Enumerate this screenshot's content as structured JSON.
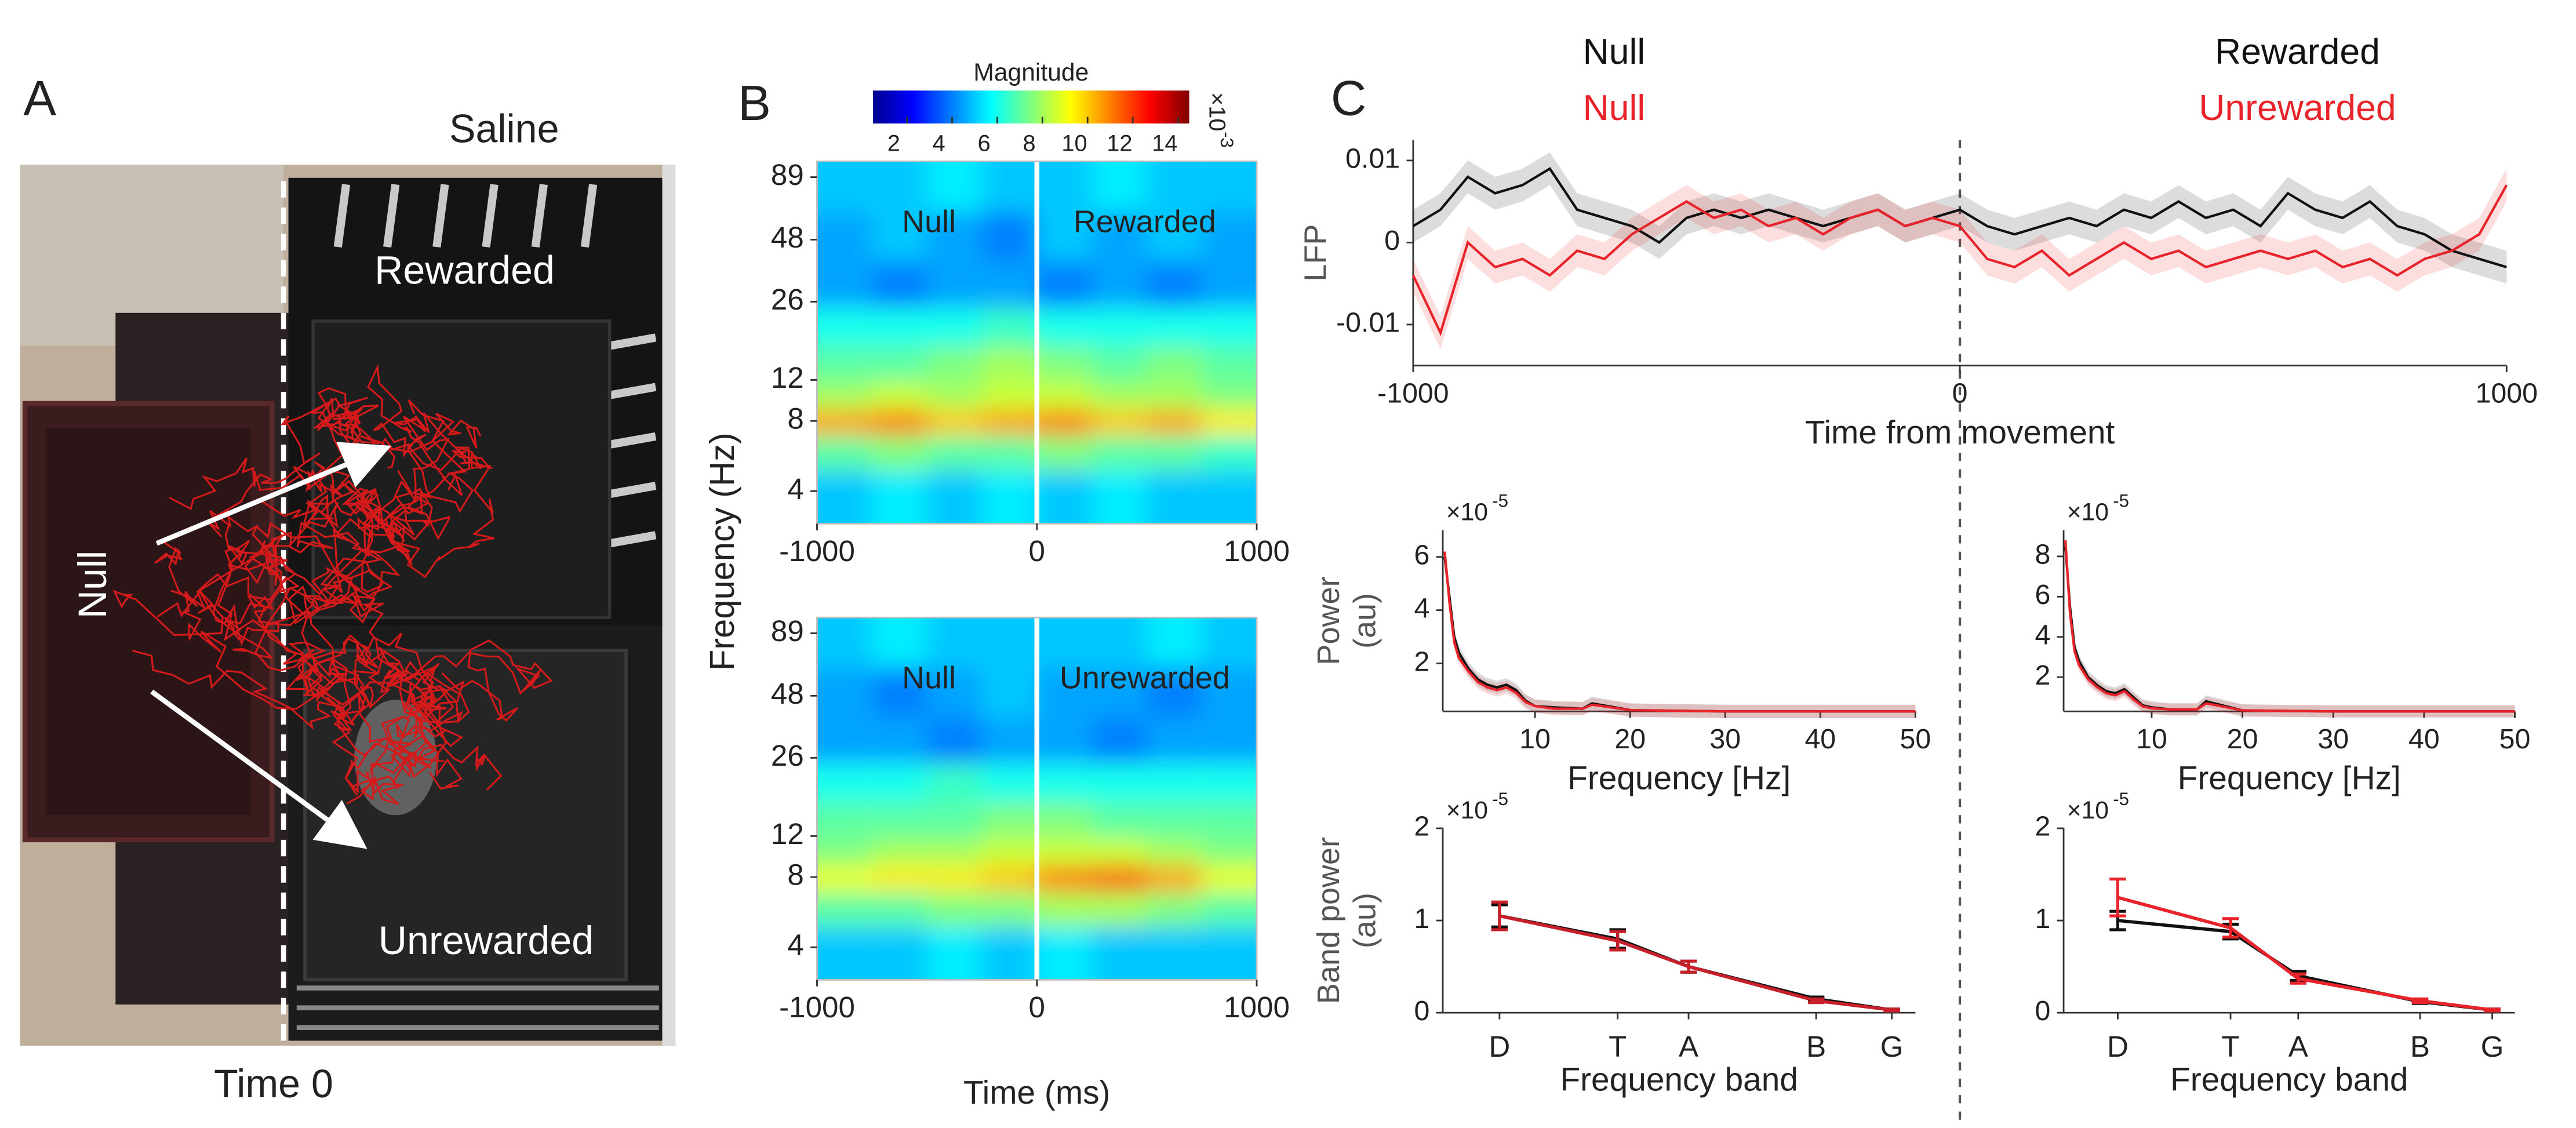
{
  "panel_labels": [
    "A",
    "B",
    "C"
  ],
  "panel_a": {
    "title": "Saline",
    "zones": [
      "Rewarded",
      "Null",
      "Unrewarded"
    ],
    "caption": "Time 0"
  },
  "colorbar": {
    "title": "Magnitude",
    "ticks": [
      2,
      4,
      6,
      8,
      10,
      12,
      14
    ],
    "clim": [
      0.5,
      14.5
    ],
    "multiplier": "×10",
    "exponent": "-3"
  },
  "chart_data": [
    {
      "type": "heatmap",
      "annotations": [
        "Null",
        "Rewarded"
      ],
      "ylabel": "Frequency (Hz)",
      "x": [
        -875,
        -625,
        -375,
        -125,
        125,
        375,
        625,
        875
      ],
      "y": [
        4,
        6,
        8,
        10,
        14,
        20,
        30,
        50,
        80
      ],
      "z": [
        [
          5,
          5.5,
          5,
          5.5,
          5,
          5.5,
          5,
          5
        ],
        [
          7,
          7.5,
          7,
          7,
          7.5,
          7,
          7,
          6.5
        ],
        [
          10.5,
          11,
          10,
          10.5,
          11,
          10,
          10.5,
          9.5
        ],
        [
          8,
          8.5,
          8,
          8.5,
          8.5,
          8,
          8,
          7.5
        ],
        [
          7,
          7,
          7.5,
          8,
          7.5,
          7,
          7.5,
          7
        ],
        [
          6,
          6,
          6,
          6.5,
          6,
          6,
          6,
          6
        ],
        [
          4.5,
          4,
          4.5,
          4.5,
          4,
          4.5,
          4,
          4.5
        ],
        [
          4.5,
          5,
          4.5,
          4,
          5,
          4.5,
          5,
          4.5
        ],
        [
          5,
          5,
          5.5,
          5,
          5,
          5.5,
          5,
          5
        ]
      ],
      "xlim": [
        -1000,
        1000
      ],
      "xticks": [
        -1000,
        0,
        1000
      ],
      "ylim": [
        2.9,
        104
      ],
      "yticks": [
        4,
        8,
        12,
        26,
        48,
        89
      ],
      "log_y": true
    },
    {
      "type": "heatmap",
      "annotations": [
        "Null",
        "Unrewarded"
      ],
      "xlabel": "Time (ms)",
      "x": [
        -875,
        -625,
        -375,
        -125,
        125,
        375,
        625,
        875
      ],
      "y": [
        4,
        6,
        8,
        10,
        14,
        20,
        30,
        50,
        80
      ],
      "z": [
        [
          5,
          5,
          5.5,
          5,
          5.5,
          5,
          5,
          5
        ],
        [
          7,
          7,
          7.5,
          7.5,
          8,
          8,
          7.5,
          7
        ],
        [
          9,
          9.5,
          9.5,
          10,
          11,
          11.5,
          10.5,
          9
        ],
        [
          7.5,
          8,
          8,
          8.5,
          8.5,
          8.5,
          8,
          7.5
        ],
        [
          7,
          7,
          7,
          7.5,
          7.5,
          7,
          7,
          7
        ],
        [
          6,
          6,
          6.5,
          6,
          6,
          6,
          6,
          6
        ],
        [
          4.5,
          4.5,
          4,
          4.5,
          4.5,
          4,
          4.5,
          4.5
        ],
        [
          4.5,
          4,
          4.5,
          5,
          4.5,
          4.5,
          4,
          4.5
        ],
        [
          5,
          5.5,
          5,
          5,
          5,
          5,
          5.5,
          5
        ]
      ],
      "xlim": [
        -1000,
        1000
      ],
      "xticks": [
        -1000,
        0,
        1000
      ],
      "ylim": [
        2.9,
        104
      ],
      "yticks": [
        4,
        8,
        12,
        26,
        48,
        89
      ],
      "log_y": true
    },
    {
      "type": "line",
      "xlabel": "Time from movement",
      "ylabel": [
        "LFP"
      ],
      "annotations": [
        {
          "text": "Null",
          "color": "#111111"
        },
        {
          "text": "Null",
          "color": "#e8232a"
        },
        {
          "text": "Rewarded",
          "color": "#111111"
        },
        {
          "text": "Unrewarded",
          "color": "#e8232a"
        }
      ],
      "x": [
        -1000,
        -950,
        -900,
        -850,
        -800,
        -750,
        -700,
        -650,
        -600,
        -550,
        -500,
        -450,
        -400,
        -350,
        -300,
        -250,
        -200,
        -150,
        -100,
        -50,
        0,
        50,
        100,
        150,
        200,
        250,
        300,
        350,
        400,
        450,
        500,
        550,
        600,
        650,
        700,
        750,
        800,
        850,
        900,
        950,
        1000
      ],
      "series": [
        {
          "color": "#111111",
          "error": 0.002,
          "values": [
            0.002,
            0.004,
            0.008,
            0.006,
            0.007,
            0.009,
            0.004,
            0.003,
            0.002,
            0.0,
            0.003,
            0.004,
            0.003,
            0.004,
            0.003,
            0.002,
            0.003,
            0.004,
            0.002,
            0.003,
            0.004,
            0.002,
            0.001,
            0.002,
            0.003,
            0.002,
            0.004,
            0.003,
            0.005,
            0.003,
            0.004,
            0.002,
            0.006,
            0.004,
            0.003,
            0.005,
            0.002,
            0.001,
            -0.001,
            -0.002,
            -0.003
          ]
        },
        {
          "color": "#e8232a",
          "error": 0.002,
          "values": [
            -0.004,
            -0.011,
            0.0,
            -0.003,
            -0.002,
            -0.004,
            -0.001,
            -0.002,
            0.001,
            0.003,
            0.005,
            0.003,
            0.004,
            0.002,
            0.003,
            0.001,
            0.003,
            0.004,
            0.002,
            0.003,
            0.002,
            -0.002,
            -0.003,
            -0.001,
            -0.004,
            -0.002,
            0.0,
            -0.002,
            -0.001,
            -0.003,
            -0.002,
            -0.001,
            -0.002,
            -0.001,
            -0.003,
            -0.002,
            -0.004,
            -0.002,
            -0.001,
            0.001,
            0.007
          ]
        }
      ],
      "xlim": [
        -1000,
        1000
      ],
      "xticks": [
        -1000,
        0,
        1000
      ],
      "ylim": [
        -0.015,
        0.0125
      ],
      "yticks": [
        -0.01,
        0,
        0.01
      ]
    },
    {
      "type": "line",
      "xlabel": "Frequency [Hz]",
      "ylabel": [
        "Power",
        "(au)"
      ],
      "multiplier": "×10",
      "exponent": "-5",
      "x": [
        0.5,
        1,
        1.5,
        2,
        3,
        4,
        5,
        6,
        7,
        8,
        9,
        10,
        12,
        15,
        16,
        20,
        25,
        30,
        40,
        50
      ],
      "series": [
        {
          "color": "#111111",
          "error": 0.25,
          "values": [
            6,
            4.5,
            3,
            2.4,
            1.8,
            1.4,
            1.2,
            1.1,
            1.2,
            1.0,
            0.6,
            0.4,
            0.35,
            0.3,
            0.5,
            0.25,
            0.22,
            0.2,
            0.2,
            0.2
          ]
        },
        {
          "color": "#e8232a",
          "error": 0.25,
          "values": [
            6.2,
            4.3,
            2.8,
            2.2,
            1.7,
            1.3,
            1.1,
            1.0,
            1.1,
            0.9,
            0.55,
            0.4,
            0.3,
            0.3,
            0.45,
            0.25,
            0.22,
            0.2,
            0.2,
            0.2
          ]
        }
      ],
      "xlim": [
        0.3,
        50
      ],
      "xticks": [
        10,
        20,
        30,
        40,
        50
      ],
      "ylim": [
        0.2,
        7
      ],
      "yticks": [
        2,
        4,
        6
      ]
    },
    {
      "type": "line",
      "xlabel": "Frequency [Hz]",
      "multiplier": "×10",
      "exponent": "-5",
      "x": [
        0.5,
        1,
        1.5,
        2,
        3,
        4,
        5,
        6,
        7,
        8,
        9,
        10,
        12,
        15,
        16,
        20,
        25,
        30,
        40,
        50
      ],
      "series": [
        {
          "color": "#111111",
          "error": 0.3,
          "values": [
            8.5,
            5.5,
            3.5,
            2.8,
            2.0,
            1.6,
            1.3,
            1.2,
            1.4,
            1.0,
            0.6,
            0.5,
            0.4,
            0.4,
            0.8,
            0.35,
            0.32,
            0.3,
            0.3,
            0.3
          ]
        },
        {
          "color": "#e8232a",
          "error": 0.3,
          "values": [
            8.8,
            5.2,
            3.3,
            2.6,
            1.9,
            1.5,
            1.2,
            1.1,
            1.3,
            0.9,
            0.55,
            0.45,
            0.4,
            0.4,
            0.7,
            0.35,
            0.32,
            0.3,
            0.3,
            0.3
          ]
        }
      ],
      "xlim": [
        0.3,
        50
      ],
      "xticks": [
        10,
        20,
        30,
        40,
        50
      ],
      "ylim": [
        0.3,
        9.3
      ],
      "yticks": [
        2,
        4,
        6,
        8
      ]
    },
    {
      "type": "errorbar",
      "xlabel": "Frequency band",
      "ylabel": [
        "Band power",
        "(au)"
      ],
      "multiplier": "×10",
      "exponent": "-5",
      "categories": [
        "D",
        "T",
        "A",
        "B",
        "G"
      ],
      "series": [
        {
          "color": "#111111",
          "values": [
            1.05,
            0.8,
            0.5,
            0.15,
            0.03
          ],
          "errors": [
            0.12,
            0.1,
            0.06,
            0.02,
            0.01
          ]
        },
        {
          "color": "#c8202a",
          "values": [
            1.05,
            0.78,
            0.5,
            0.13,
            0.03
          ],
          "errors": [
            0.15,
            0.1,
            0.06,
            0.02,
            0.01
          ]
        }
      ],
      "ylim": [
        0,
        2
      ],
      "yticks": [
        0,
        1,
        2
      ]
    },
    {
      "type": "errorbar",
      "xlabel": "Frequency band",
      "multiplier": "×10",
      "exponent": "-5",
      "categories": [
        "D",
        "T",
        "A",
        "B",
        "G"
      ],
      "series": [
        {
          "color": "#111111",
          "values": [
            1.0,
            0.88,
            0.4,
            0.12,
            0.03
          ],
          "errors": [
            0.1,
            0.08,
            0.05,
            0.02,
            0.01
          ]
        },
        {
          "color": "#e8232a",
          "values": [
            1.25,
            0.92,
            0.37,
            0.13,
            0.03
          ],
          "errors": [
            0.2,
            0.1,
            0.05,
            0.02,
            0.01
          ]
        }
      ],
      "ylim": [
        0,
        2
      ],
      "yticks": [
        0,
        1,
        2
      ]
    }
  ]
}
